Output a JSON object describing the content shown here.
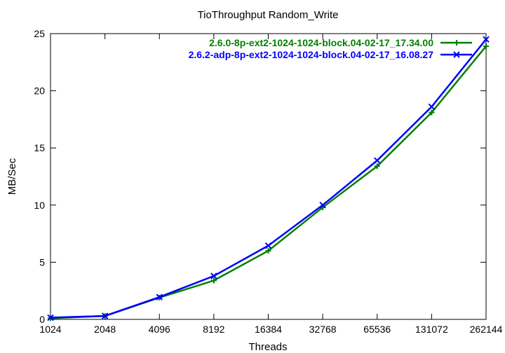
{
  "chart_data": {
    "type": "line",
    "title": "TioThroughput Random_Write",
    "xlabel": "Threads",
    "ylabel": "MB/Sec",
    "x_scale": "log2",
    "categories": [
      "1024",
      "2048",
      "4096",
      "8192",
      "16384",
      "32768",
      "65536",
      "131072",
      "262144"
    ],
    "yticks": [
      "0",
      "5",
      "10",
      "15",
      "20",
      "25"
    ],
    "ylim": [
      0,
      25
    ],
    "legend_position": "top-right",
    "series": [
      {
        "name": "2.6.0-8p-ext2-1024-1024-block.04-02-17_17.34.00",
        "color": "#008000",
        "marker": "plus",
        "values": [
          0.1,
          0.3,
          1.9,
          3.4,
          6.0,
          9.8,
          13.4,
          18.1,
          23.9
        ]
      },
      {
        "name": "2.6.2-adp-8p-ext2-1024-1024-block.04-02-17_16.08.27",
        "color": "#0000ff",
        "marker": "cross",
        "values": [
          0.15,
          0.3,
          1.95,
          3.8,
          6.45,
          10.0,
          13.9,
          18.6,
          24.5
        ]
      }
    ]
  }
}
